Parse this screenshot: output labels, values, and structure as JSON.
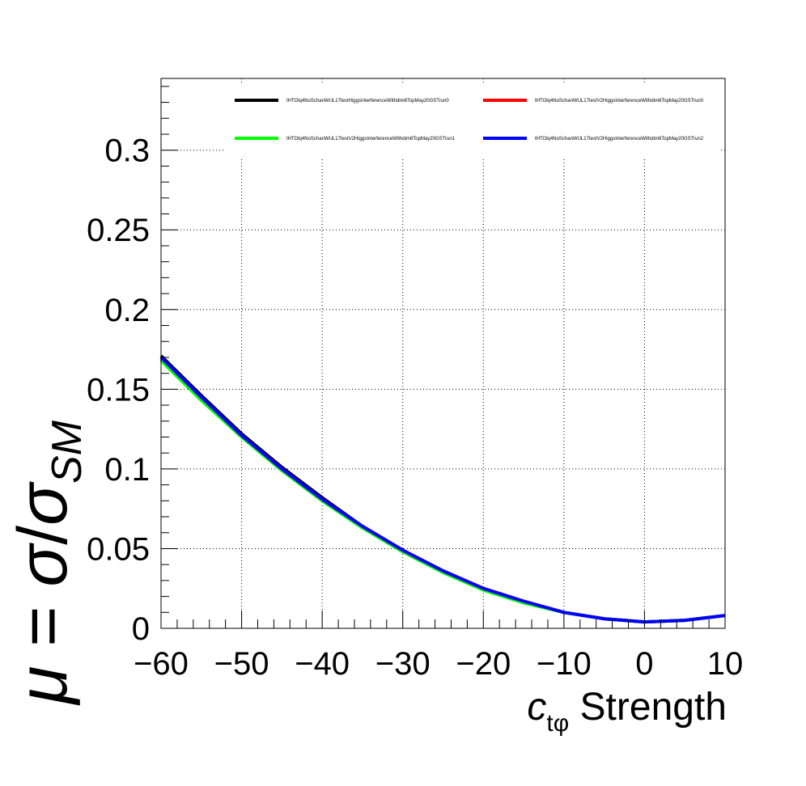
{
  "chart_data": {
    "type": "line",
    "title": "",
    "xlabel": {
      "symbol": "c",
      "subscript": "tφ",
      "suffix": " Strength"
    },
    "ylabel": {
      "mu": "μ",
      "equals": " = ",
      "sigma": "σ",
      "slash": "/",
      "sigma_sm": "σ",
      "sub": "SM"
    },
    "xlim": [
      -60,
      10
    ],
    "ylim": [
      0,
      0.345
    ],
    "xticks": [
      -60,
      -50,
      -40,
      -30,
      -20,
      -10,
      0,
      10
    ],
    "xtick_labels": [
      "−60",
      "−50",
      "−40",
      "−30",
      "−20",
      "−10",
      "0",
      "10"
    ],
    "yticks": [
      0,
      0.05,
      0.1,
      0.15,
      0.2,
      0.25,
      0.3
    ],
    "ytick_labels": [
      "0",
      "0.05",
      "0.1",
      "0.15",
      "0.2",
      "0.25",
      "0.3"
    ],
    "grid": true,
    "legend_position": "top",
    "series": [
      {
        "name": "tHTOlq4NoSchanWUL17testHiggsInterferenceWithdim6TopMay20GSTrun0",
        "color": "#000000",
        "x": [
          -60,
          -55,
          -50,
          -45,
          -40,
          -35,
          -30,
          -25,
          -20,
          -15,
          -10,
          -5,
          0,
          5,
          10
        ],
        "y": [
          0.171,
          0.146,
          0.122,
          0.101,
          0.082,
          0.064,
          0.049,
          0.036,
          0.025,
          0.017,
          0.01,
          0.006,
          0.004,
          0.005,
          0.008
        ]
      },
      {
        "name": "tHTOlq4NoSchanWUL17testV2HiggsInterferenceWithdim6TopMay20GSTrun0",
        "color": "#ff0000",
        "x": [
          -60,
          -55,
          -50,
          -45,
          -40,
          -35,
          -30,
          -25,
          -20,
          -15,
          -10,
          -5,
          0,
          5,
          10
        ],
        "y": [
          0.169,
          0.144,
          0.121,
          0.1,
          0.081,
          0.064,
          0.049,
          0.036,
          0.025,
          0.017,
          0.01,
          0.006,
          0.004,
          0.005,
          0.008
        ]
      },
      {
        "name": "tHTOlq4NoSchanWUL17testV2HiggsInterferenceWithdim6TopMay20GSTrun1",
        "color": "#00ff00",
        "x": [
          -60,
          -55,
          -50,
          -45,
          -40,
          -35,
          -30,
          -25,
          -20,
          -15,
          -10,
          -5,
          0,
          5,
          10
        ],
        "y": [
          0.168,
          0.143,
          0.12,
          0.099,
          0.08,
          0.063,
          0.048,
          0.035,
          0.024,
          0.016,
          0.01,
          0.006,
          0.004,
          0.005,
          0.008
        ]
      },
      {
        "name": "tHTOlq4NoSchanWUL17testV2HiggsInterferenceWithdim6TopMay20GSTrun2",
        "color": "#0000ff",
        "x": [
          -60,
          -55,
          -50,
          -45,
          -40,
          -35,
          -30,
          -25,
          -20,
          -15,
          -10,
          -5,
          0,
          5,
          10
        ],
        "y": [
          0.17,
          0.145,
          0.121,
          0.1,
          0.081,
          0.064,
          0.049,
          0.036,
          0.025,
          0.017,
          0.01,
          0.006,
          0.004,
          0.005,
          0.008
        ]
      }
    ]
  }
}
